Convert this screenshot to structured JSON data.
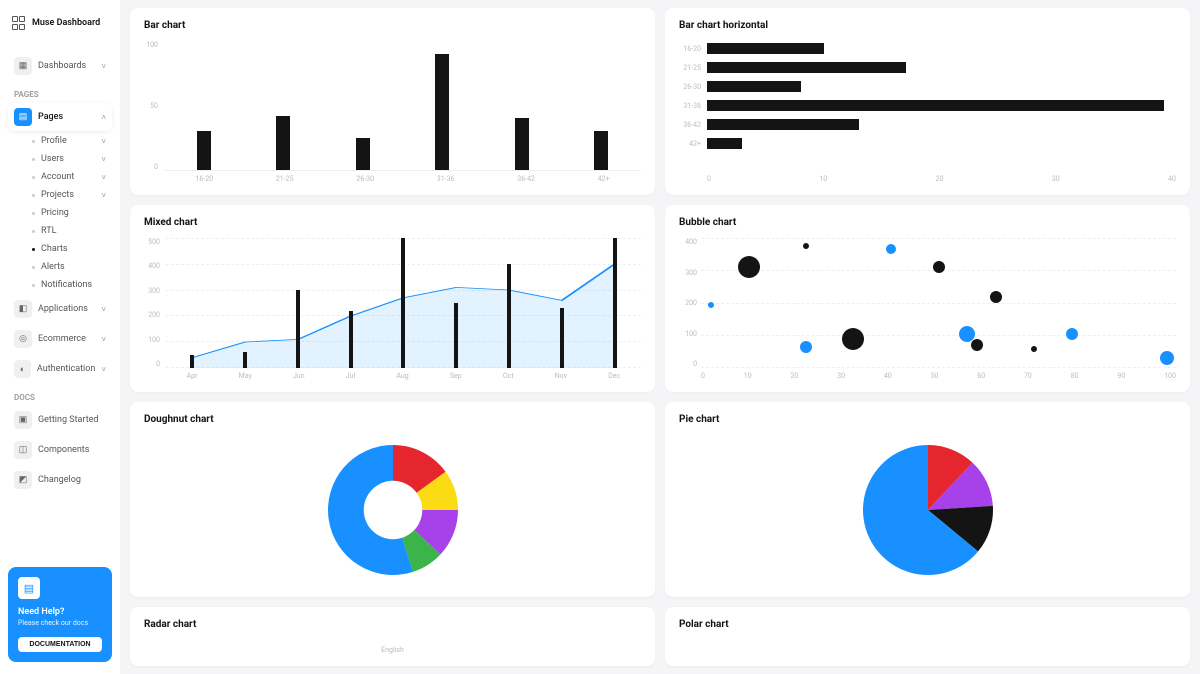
{
  "app_title": "Muse Dashboard",
  "sidebar": {
    "dashboards_label": "Dashboards",
    "section_pages": "PAGES",
    "pages_label": "Pages",
    "sub_items": [
      {
        "label": "Profile",
        "chev": true
      },
      {
        "label": "Users",
        "chev": true
      },
      {
        "label": "Account",
        "chev": true
      },
      {
        "label": "Projects",
        "chev": true
      },
      {
        "label": "Pricing",
        "chev": false
      },
      {
        "label": "RTL",
        "chev": false
      },
      {
        "label": "Charts",
        "chev": false,
        "active": true
      },
      {
        "label": "Alerts",
        "chev": false
      },
      {
        "label": "Notifications",
        "chev": false
      }
    ],
    "applications_label": "Applications",
    "ecommerce_label": "Ecommerce",
    "authentication_label": "Authentication",
    "section_docs": "DOCS",
    "getting_started_label": "Getting Started",
    "components_label": "Components",
    "changelog_label": "Changelog",
    "help": {
      "title": "Need Help?",
      "sub": "Please check our docs",
      "btn": "DOCUMENTATION"
    }
  },
  "charts": {
    "bar_vertical": {
      "title": "Bar chart",
      "type": "bar",
      "bar_color": "#141414",
      "ylim": [
        0,
        100
      ],
      "ytick_step": 50,
      "categories": [
        "16-20",
        "21-25",
        "26-30",
        "31-36",
        "36-42",
        "42+"
      ],
      "values": [
        30,
        42,
        25,
        90,
        40,
        30
      ]
    },
    "bar_horizontal": {
      "title": "Bar chart horizontal",
      "type": "bar-horizontal",
      "bar_color": "#141414",
      "xlim": [
        0,
        40
      ],
      "xticks": [
        0,
        10,
        20,
        30,
        40
      ],
      "categories": [
        "16-20",
        "21-25",
        "26-30",
        "31-36",
        "36-42",
        "42+"
      ],
      "values": [
        10,
        17,
        8,
        39,
        13,
        3
      ]
    },
    "mixed": {
      "title": "Mixed chart",
      "type": "mixed",
      "bar_color": "#141414",
      "line_color": "#1890ff",
      "area_fill": "rgba(24,144,255,0.12)",
      "ylim": [
        0,
        500
      ],
      "yticks": [
        0,
        100,
        200,
        300,
        400,
        500
      ],
      "categories": [
        "Apr",
        "May",
        "Jun",
        "Jul",
        "Aug",
        "Sep",
        "Oct",
        "Nov",
        "Dec"
      ],
      "bar_values": [
        50,
        60,
        300,
        220,
        500,
        250,
        400,
        230,
        500
      ],
      "line_values": [
        40,
        100,
        110,
        200,
        270,
        310,
        300,
        260,
        400
      ]
    },
    "bubble": {
      "title": "Bubble chart",
      "type": "bubble",
      "ylim": [
        0,
        400
      ],
      "yticks": [
        0,
        100,
        200,
        300,
        400
      ],
      "xlim": [
        0,
        100
      ],
      "xticks": [
        0,
        10,
        20,
        30,
        40,
        50,
        60,
        70,
        80,
        90,
        100
      ],
      "series": [
        {
          "color": "#141414",
          "points": [
            {
              "x": 10,
              "y": 310,
              "r": 11
            },
            {
              "x": 22,
              "y": 375,
              "r": 3
            },
            {
              "x": 32,
              "y": 90,
              "r": 11
            },
            {
              "x": 50,
              "y": 310,
              "r": 6
            },
            {
              "x": 58,
              "y": 70,
              "r": 6
            },
            {
              "x": 62,
              "y": 220,
              "r": 6
            },
            {
              "x": 70,
              "y": 60,
              "r": 3
            }
          ]
        },
        {
          "color": "#1890ff",
          "points": [
            {
              "x": 2,
              "y": 195,
              "r": 3
            },
            {
              "x": 22,
              "y": 65,
              "r": 6
            },
            {
              "x": 40,
              "y": 365,
              "r": 5
            },
            {
              "x": 56,
              "y": 105,
              "r": 8
            },
            {
              "x": 78,
              "y": 105,
              "r": 6
            },
            {
              "x": 98,
              "y": 30,
              "r": 7
            }
          ]
        }
      ]
    },
    "doughnut": {
      "title": "Doughnut chart",
      "type": "doughnut",
      "inner_radius": 0.45,
      "slices": [
        {
          "value": 15,
          "color": "#e6262e"
        },
        {
          "value": 10,
          "color": "#fadb14"
        },
        {
          "value": 12,
          "color": "#a742ea"
        },
        {
          "value": 8,
          "color": "#3bb54a"
        },
        {
          "value": 55,
          "color": "#1890ff"
        }
      ]
    },
    "pie": {
      "title": "Pie chart",
      "type": "pie",
      "slices": [
        {
          "value": 12,
          "color": "#e6262e"
        },
        {
          "value": 12,
          "color": "#a742ea"
        },
        {
          "value": 12,
          "color": "#141414"
        },
        {
          "value": 64,
          "color": "#1890ff"
        }
      ]
    },
    "radar": {
      "title": "Radar chart",
      "center_label": "English"
    },
    "polar": {
      "title": "Polar chart"
    }
  }
}
